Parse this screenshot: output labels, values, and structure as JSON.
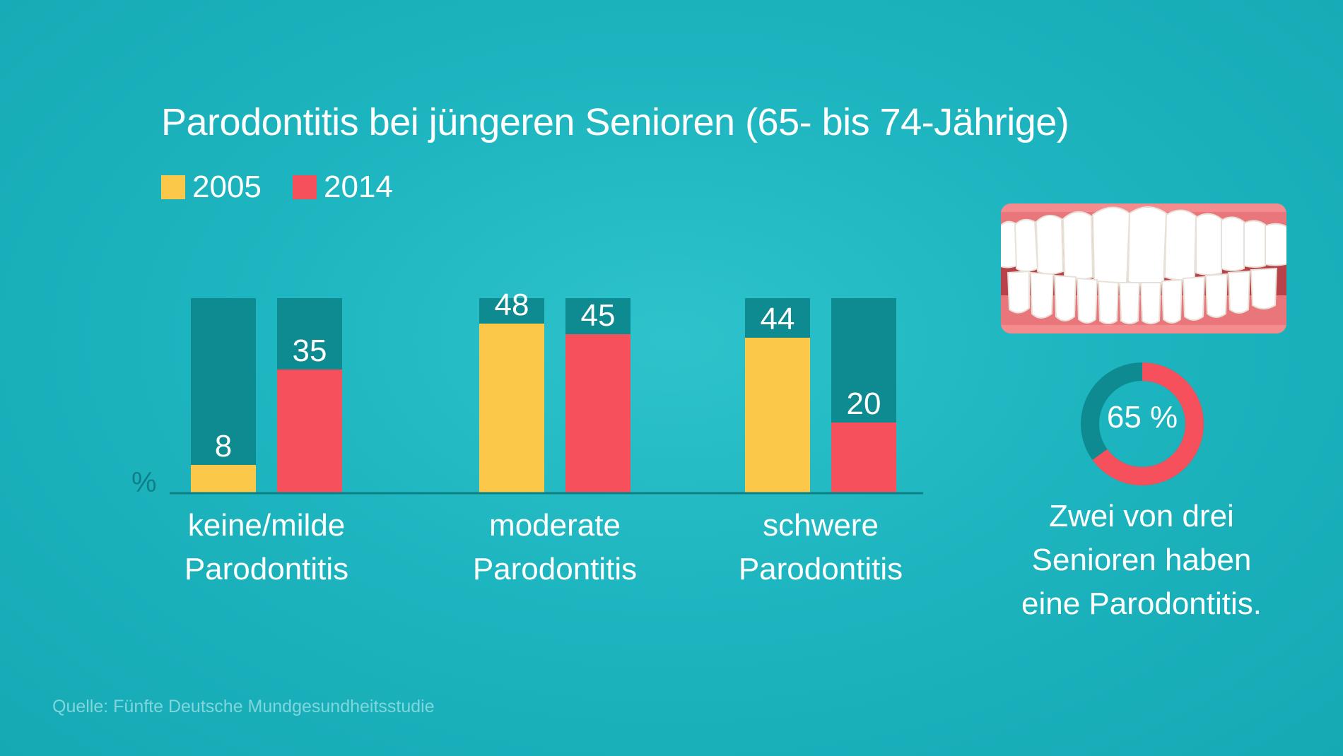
{
  "chart_data": {
    "type": "bar",
    "title": "Parodontitis bei jüngeren Senioren (65- bis 74-Jährige)",
    "unit_label": "%",
    "categories": [
      "keine/milde Parodontitis",
      "moderate Parodontitis",
      "schwere Parodontitis"
    ],
    "category_lines": [
      [
        "keine/milde",
        "Parodontitis"
      ],
      [
        "moderate",
        "Parodontitis"
      ],
      [
        "schwere",
        "Parodontitis"
      ]
    ],
    "series": [
      {
        "name": "2005",
        "values": [
          8,
          48,
          44
        ]
      },
      {
        "name": "2014",
        "values": [
          35,
          45,
          20
        ]
      }
    ],
    "ylim": [
      0,
      100
    ],
    "legend": "top-left",
    "grid": false
  },
  "colors": {
    "background": "#1db5bf",
    "bar_track": "#0e8a91",
    "series_2005": "#fcc84a",
    "series_2014": "#f5505b",
    "baseline": "#0f7f86",
    "text": "#ffffff"
  },
  "legend": [
    {
      "label": "2005",
      "color": "#fcc84a"
    },
    {
      "label": "2014",
      "color": "#f5505b"
    }
  ],
  "side_panel": {
    "image": "teeth-gums-illustration",
    "donut_percent": 65,
    "donut_label": "65 %",
    "caption_lines": [
      "Zwei von drei",
      "Senioren haben",
      "eine Parodontitis."
    ]
  },
  "source": "Quelle: Fünfte Deutsche Mundgesundheitsstudie"
}
